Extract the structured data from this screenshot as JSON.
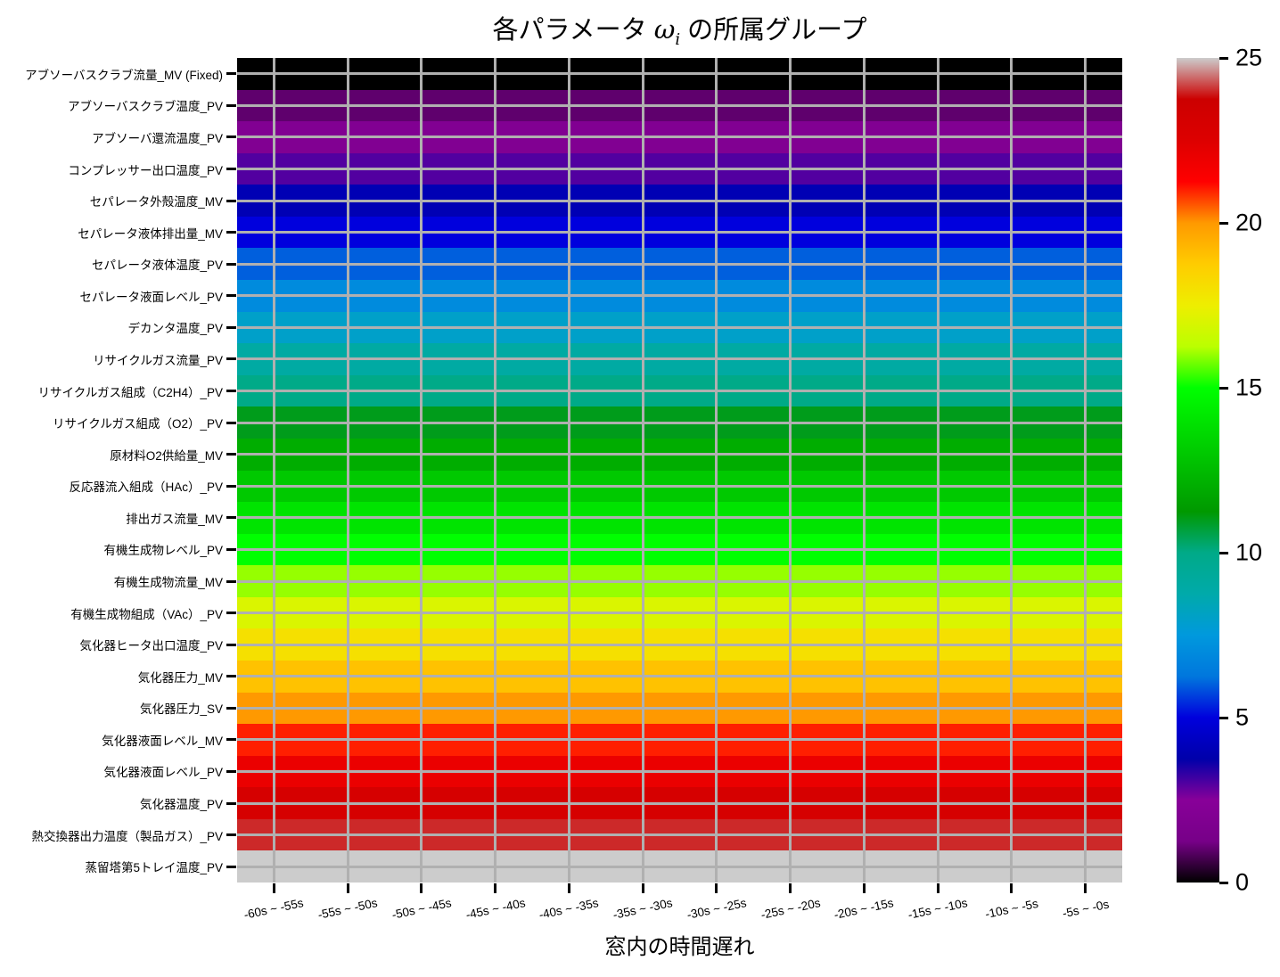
{
  "chart_data": {
    "type": "heatmap",
    "title": {
      "prefix": "各パラメータ ",
      "symbol": "ω",
      "subscript": "i",
      "suffix": " の所属グループ"
    },
    "xlabel": "窓内の時間遅れ",
    "x_categories": [
      "-60s ~ -55s",
      "-55s ~ -50s",
      "-50s ~ -45s",
      "-45s ~ -40s",
      "-40s ~ -35s",
      "-35s ~ -30s",
      "-30s ~ -25s",
      "-25s ~ -20s",
      "-20s ~ -15s",
      "-15s ~ -10s",
      "-10s ~ -5s",
      "-5s ~ -0s"
    ],
    "values_uniform_across_columns": true,
    "rows": [
      {
        "label": "アブソーバスクラブ流量_MV (Fixed)",
        "group": 0,
        "color": "#000000"
      },
      {
        "label": "アブソーバスクラブ温度_PV",
        "group": 1,
        "color": "#5F006D"
      },
      {
        "label": "アブソーバ還流温度_PV",
        "group": 2,
        "color": "#810092"
      },
      {
        "label": "コンプレッサー出口温度_PV",
        "group": 3,
        "color": "#5200A0"
      },
      {
        "label": "セパレータ外殻温度_MV",
        "group": 4,
        "color": "#0000B4"
      },
      {
        "label": "セパレータ液体排出量_MV",
        "group": 5,
        "color": "#0000DD"
      },
      {
        "label": "セパレータ液体温度_PV",
        "group": 6,
        "color": "#005FDD"
      },
      {
        "label": "セパレータ液面レベル_PV",
        "group": 7,
        "color": "#008BDD"
      },
      {
        "label": "デカンタ温度_PV",
        "group": 8,
        "color": "#00A0C9"
      },
      {
        "label": "リサイクルガス流量_PV",
        "group": 9,
        "color": "#00AAA3"
      },
      {
        "label": "リサイクルガス組成（C2H4）_PV",
        "group": 10,
        "color": "#00AA88"
      },
      {
        "label": "リサイクルガス組成（O2）_PV",
        "group": 11,
        "color": "#009C1B"
      },
      {
        "label": "原材料O2供給量_MV",
        "group": 12,
        "color": "#00AD00"
      },
      {
        "label": "反応器流入組成（HAc）_PV",
        "group": 13,
        "color": "#00C900"
      },
      {
        "label": "排出ガス流量_MV",
        "group": 14,
        "color": "#00E400"
      },
      {
        "label": "有機生成物レベル_PV",
        "group": 15,
        "color": "#00FF00"
      },
      {
        "label": "有機生成物流量_MV",
        "group": 16,
        "color": "#96FF00"
      },
      {
        "label": "有機生成物組成（VAc）_PV",
        "group": 17,
        "color": "#DAF500"
      },
      {
        "label": "気化器ヒータ出口温度_PV",
        "group": 18,
        "color": "#F5E000"
      },
      {
        "label": "気化器圧力_MV",
        "group": 19,
        "color": "#FFC200"
      },
      {
        "label": "気化器圧力_SV",
        "group": 20,
        "color": "#FF9900"
      },
      {
        "label": "気化器液面レベル_MV",
        "group": 21,
        "color": "#FF1F00"
      },
      {
        "label": "気化器液面レベル_PV",
        "group": 22,
        "color": "#EB0000"
      },
      {
        "label": "気化器温度_PV",
        "group": 23,
        "color": "#D60000"
      },
      {
        "label": "熱交換器出力温度（製品ガス）_PV",
        "group": 24,
        "color": "#CC2929"
      },
      {
        "label": "蒸留塔第5トレイ温度_PV",
        "group": 25,
        "color": "#CCCCCC"
      }
    ],
    "vmin": 0,
    "vmax": 25,
    "colormap": "nipy_spectral",
    "colorbar_ticks": [
      0,
      5,
      10,
      15,
      20,
      25
    ],
    "colormap_stops": [
      {
        "p": 0.0,
        "c": "#000000"
      },
      {
        "p": 0.05,
        "c": "#770088"
      },
      {
        "p": 0.1,
        "c": "#880099"
      },
      {
        "p": 0.15,
        "c": "#0000AA"
      },
      {
        "p": 0.2,
        "c": "#0000DD"
      },
      {
        "p": 0.25,
        "c": "#0077DD"
      },
      {
        "p": 0.3,
        "c": "#0099DD"
      },
      {
        "p": 0.35,
        "c": "#00AAAA"
      },
      {
        "p": 0.4,
        "c": "#00AA88"
      },
      {
        "p": 0.45,
        "c": "#009900"
      },
      {
        "p": 0.5,
        "c": "#00BB00"
      },
      {
        "p": 0.55,
        "c": "#00DD00"
      },
      {
        "p": 0.6,
        "c": "#00FF00"
      },
      {
        "p": 0.65,
        "c": "#BBFF00"
      },
      {
        "p": 0.7,
        "c": "#EEEE00"
      },
      {
        "p": 0.75,
        "c": "#FFCC00"
      },
      {
        "p": 0.8,
        "c": "#FF9900"
      },
      {
        "p": 0.85,
        "c": "#FF0000"
      },
      {
        "p": 0.9,
        "c": "#DD0000"
      },
      {
        "p": 0.95,
        "c": "#CC0000"
      },
      {
        "p": 1.0,
        "c": "#CCCCCC"
      }
    ],
    "grid": true,
    "grid_color": "#b0b0b0",
    "legend_position": "right-colorbar"
  }
}
